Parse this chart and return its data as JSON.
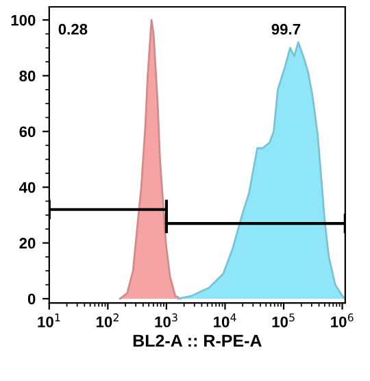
{
  "chart_data": {
    "type": "area",
    "xlabel": "BL2-A :: R-PE-A",
    "log": "x",
    "xlim": [
      10,
      1122000
    ],
    "ylim": [
      -1.5,
      104.7
    ],
    "xticks": [
      {
        "value": 10,
        "label": "10$^{1}$"
      },
      {
        "value": 100,
        "label": "10$^{2}$"
      },
      {
        "value": 1000,
        "label": "10$^{3}$"
      },
      {
        "value": 10000,
        "label": "10$^{4}$"
      },
      {
        "value": 100000,
        "label": "10$^{5}$"
      },
      {
        "value": 1000000,
        "label": "10$^{6}$"
      }
    ],
    "yticks": [
      0,
      20,
      40,
      60,
      80,
      100
    ],
    "grid": false,
    "legend": false,
    "series": [
      {
        "color": "#f6a3a3",
        "x": [
          162,
          214,
          269,
          316,
          372,
          437,
          479,
          556,
          603,
          631,
          708,
          776,
          871,
          977,
          1148,
          1413,
          1738
        ],
        "values": [
          0,
          2,
          10,
          25,
          40,
          62,
          80,
          100,
          95,
          88,
          70,
          50,
          35,
          20,
          8,
          1,
          0
        ]
      },
      {
        "color": "#8ee6f8",
        "x": [
          1585,
          2692,
          5370,
          9333,
          13490,
          19500,
          25700,
          30200,
          35500,
          43650,
          57500,
          67600,
          79400,
          104700,
          128800,
          151400,
          177800,
          223900,
          263000,
          309000,
          380000,
          446700,
          501000,
          589000,
          758600,
          1000000,
          1122000
        ],
        "values": [
          0,
          1,
          4,
          9,
          18,
          30,
          38,
          46,
          54,
          54,
          56,
          60,
          75,
          83,
          90,
          87,
          92,
          86,
          81,
          73,
          59,
          41,
          28,
          15,
          5,
          1,
          0
        ]
      },
      {
        "type": "line",
        "color": "#000000",
        "x": [
          10,
          1000
        ],
        "values": [
          32,
          32
        ]
      },
      {
        "type": "line",
        "color": "#000000",
        "x": [
          1000,
          1122000
        ],
        "values": [
          27,
          27
        ]
      }
    ],
    "annotations": [
      "0.28",
      "99.7"
    ]
  }
}
